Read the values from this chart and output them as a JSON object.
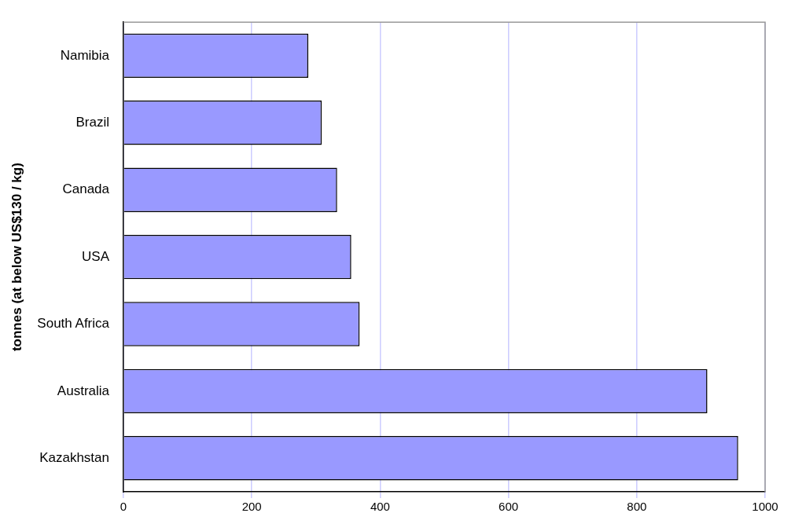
{
  "chart_data": {
    "type": "bar",
    "orientation": "horizontal",
    "ylabel": "tonnes (at below US$130 / kg)",
    "categories": [
      "Namibia",
      "Brazil",
      "Canada",
      "USA",
      "South Africa",
      "Australia",
      "Kazakhstan"
    ],
    "values": [
      288,
      309,
      333,
      355,
      368,
      910,
      958
    ],
    "color": "#9999ff",
    "xlim": [
      0,
      1000
    ],
    "xticks": [
      0,
      200,
      400,
      600,
      800,
      1000
    ],
    "grid": "x",
    "legend": false
  }
}
